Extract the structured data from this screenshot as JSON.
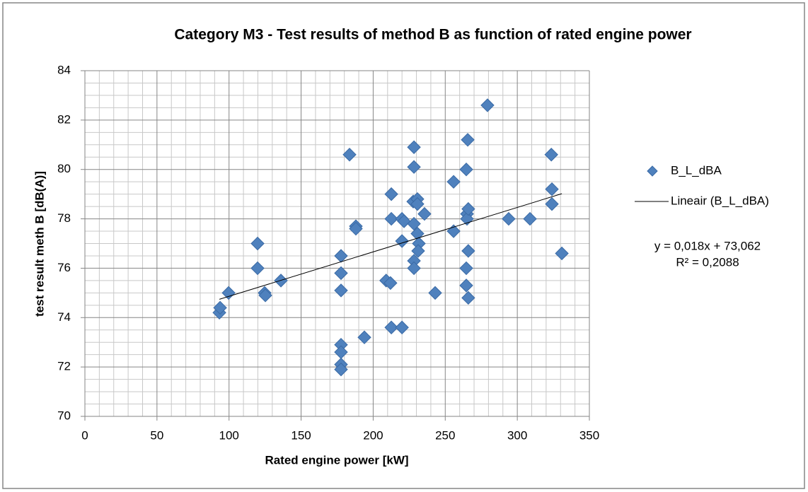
{
  "chart_data": {
    "type": "scatter",
    "title": "Category M3 - Test results of method B as function of rated engine power",
    "x_label": "Rated engine power [kW]",
    "y_label": "test result meth B [dB(A)]",
    "xlim": [
      0,
      350
    ],
    "xticks": [
      0,
      50,
      100,
      150,
      200,
      250,
      300,
      350
    ],
    "ylim": [
      70,
      84
    ],
    "yticks": [
      70,
      72,
      74,
      76,
      78,
      80,
      82,
      84
    ],
    "grid": true,
    "legend": "right",
    "series": [
      {
        "name": "B_L_dBA",
        "color": "#4f81bd",
        "x": [
          93.3,
          93.8,
          99.7,
          119.8,
          119.8,
          124.7,
          125.2,
          136,
          177.7,
          177.7,
          177.7,
          177.7,
          177.7,
          177.7,
          177.7,
          183.6,
          188,
          188,
          193.9,
          209,
          212,
          212.6,
          212.6,
          212.6,
          220,
          220,
          221.4,
          220,
          228.3,
          228.3,
          227.8,
          228.3,
          228.3,
          228.3,
          230.7,
          230.7,
          230.7,
          231.7,
          231.2,
          235.6,
          243,
          255.8,
          255.8,
          264.6,
          265.6,
          265.1,
          265.1,
          266,
          266,
          264.6,
          264.6,
          266,
          279.3,
          294,
          308.8,
          323.6,
          324,
          324,
          330.9
        ],
        "values": [
          74.2,
          74.4,
          75.0,
          77.0,
          76.0,
          75.0,
          74.9,
          75.5,
          76.5,
          75.8,
          75.1,
          72.9,
          72.6,
          72.1,
          71.9,
          80.6,
          77.7,
          77.6,
          73.2,
          75.5,
          75.4,
          79.0,
          78.0,
          73.6,
          77.1,
          78.0,
          77.9,
          73.6,
          80.9,
          80.1,
          78.7,
          77.8,
          76.3,
          76.0,
          78.8,
          78.6,
          77.4,
          77.0,
          76.7,
          78.2,
          75.0,
          79.5,
          77.5,
          80.0,
          81.2,
          78.2,
          78.0,
          78.4,
          76.7,
          76.0,
          75.3,
          74.8,
          82.6,
          78.0,
          78.0,
          80.6,
          79.2,
          78.6,
          76.6
        ]
      }
    ],
    "trendline": {
      "name": "Lineair (B_L_dBA)",
      "slope": 0.018,
      "intercept": 73.062,
      "color": "#000000",
      "equation": "y = 0,018x + 73,062",
      "r_squared": "R² = 0,2088"
    }
  }
}
